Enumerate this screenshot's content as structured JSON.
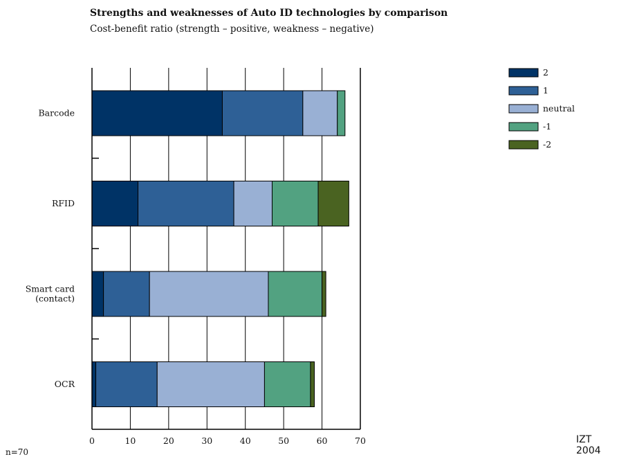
{
  "chart_data": {
    "type": "bar",
    "orientation": "horizontal",
    "stacked": true,
    "title": "Strengths and weaknesses of Auto ID technologies by comparison",
    "subtitle": "Cost-benefit ratio (strength – positive, weakness – negative)",
    "categories": [
      "Barcode",
      "RFID",
      "Smart card (contact)",
      "OCR"
    ],
    "series": [
      {
        "name": "2",
        "color": "#003366",
        "values": [
          34,
          12,
          3,
          1
        ]
      },
      {
        "name": "1",
        "color": "#2e6096",
        "values": [
          21,
          25,
          12,
          16
        ]
      },
      {
        "name": "neutral",
        "color": "#99b0d4",
        "values": [
          9,
          10,
          31,
          28
        ]
      },
      {
        "name": "-1",
        "color": "#52a281",
        "values": [
          2,
          12,
          14,
          12
        ]
      },
      {
        "name": "-2",
        "color": "#4a6321",
        "values": [
          0,
          8,
          1,
          1
        ]
      }
    ],
    "xlim": [
      0,
      70
    ],
    "xticks": [
      0,
      10,
      20,
      30,
      40,
      50,
      60,
      70
    ],
    "grid": true,
    "legend_position": "top-right"
  },
  "note": "n=70",
  "credit": "IZT 2004"
}
